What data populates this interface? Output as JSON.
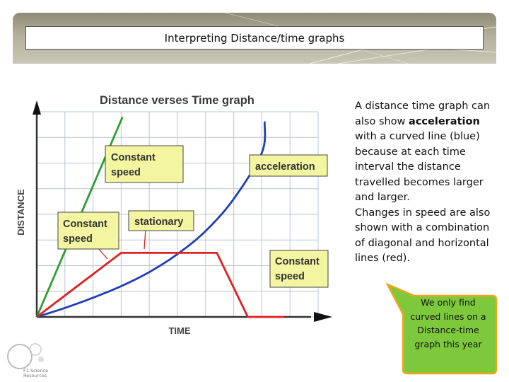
{
  "slide": {
    "title": "Interpreting Distance/time graphs",
    "logo_text_line1": "F1 Science",
    "logo_text_line2": "Resources"
  },
  "chart_data": {
    "type": "line",
    "title": "Distance verses Time graph",
    "xlabel": "TIME",
    "ylabel": "DISTANCE",
    "grid": true,
    "xlim": [
      0,
      10
    ],
    "ylim": [
      0,
      8
    ],
    "series": [
      {
        "color": "#2e9e2e",
        "x": [
          0,
          3.05
        ],
        "y": [
          0,
          7.8
        ]
      },
      {
        "color": "#1f3fb4",
        "x": [
          0,
          1,
          2,
          3,
          4,
          5,
          6,
          7,
          8,
          8.1
        ],
        "y": [
          0,
          0.35,
          0.75,
          1.2,
          1.75,
          2.45,
          3.35,
          4.6,
          6.4,
          7.6
        ]
      },
      {
        "color": "#e02020",
        "x": [
          0,
          3,
          6.4,
          7.5,
          8.8
        ],
        "y": [
          0,
          2.5,
          2.5,
          0,
          0
        ]
      }
    ],
    "annotations": [
      {
        "text_line1": "Constant",
        "text_line2": "speed"
      },
      {
        "text_line1": "acceleration"
      },
      {
        "text_line1": "Constant",
        "text_line2": "speed"
      },
      {
        "text_line1": "stationary"
      },
      {
        "text_line1": "Constant",
        "text_line2": "speed"
      }
    ]
  },
  "side_text": {
    "before_bold": "A distance time graph can also show ",
    "bold": "acceleration",
    "after_bold": " with a curved line (blue) because at each time interval the distance travelled becomes larger and larger.",
    "paragraph2": "Changes in speed are also shown with a combination of diagonal and horizontal lines (red)."
  },
  "callout": {
    "text": "We only find curved lines on a Distance-time graph this year",
    "fill_color": "#7ec83c",
    "border_color": "#f2a51a"
  },
  "colors": {
    "annotation_fill": "#f4f5a0",
    "grid_line": "#b9c4d6",
    "header_band": "#a9a48f"
  }
}
